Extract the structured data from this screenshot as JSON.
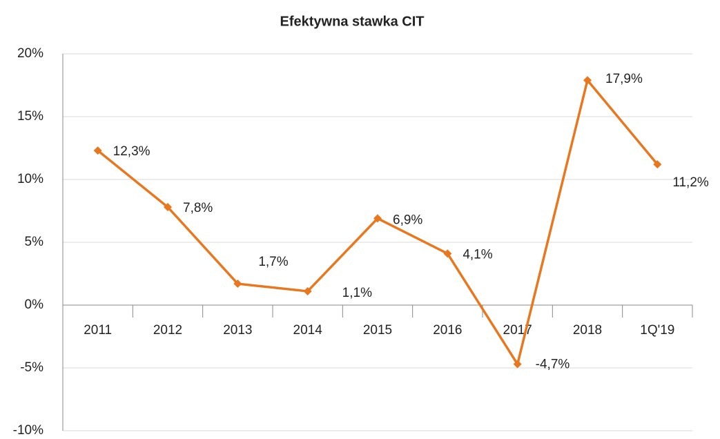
{
  "chart_data": {
    "type": "line",
    "title": "Efektywna stawka CIT",
    "categories": [
      "2011",
      "2012",
      "2013",
      "2014",
      "2015",
      "2016",
      "2017",
      "2018",
      "1Q'19"
    ],
    "series": [
      {
        "name": "Efektywna stawka CIT",
        "color": "#e8771e",
        "values": [
          12.3,
          7.8,
          1.7,
          1.1,
          6.9,
          4.1,
          -4.7,
          17.9,
          11.2
        ],
        "value_labels": [
          "12,3%",
          "7,8%",
          "1,7%",
          "1,1%",
          "6,9%",
          "4,1%",
          "-4,7%",
          "17,9%",
          "11,2%"
        ]
      }
    ],
    "ylim": [
      -10,
      20
    ],
    "yticks": [
      {
        "value": -10,
        "label": "-10%"
      },
      {
        "value": -5,
        "label": "-5%"
      },
      {
        "value": 0,
        "label": "0%"
      },
      {
        "value": 5,
        "label": "5%"
      },
      {
        "value": 10,
        "label": "10%"
      },
      {
        "value": 15,
        "label": "15%"
      },
      {
        "value": 20,
        "label": "20%"
      }
    ],
    "grid": true
  }
}
